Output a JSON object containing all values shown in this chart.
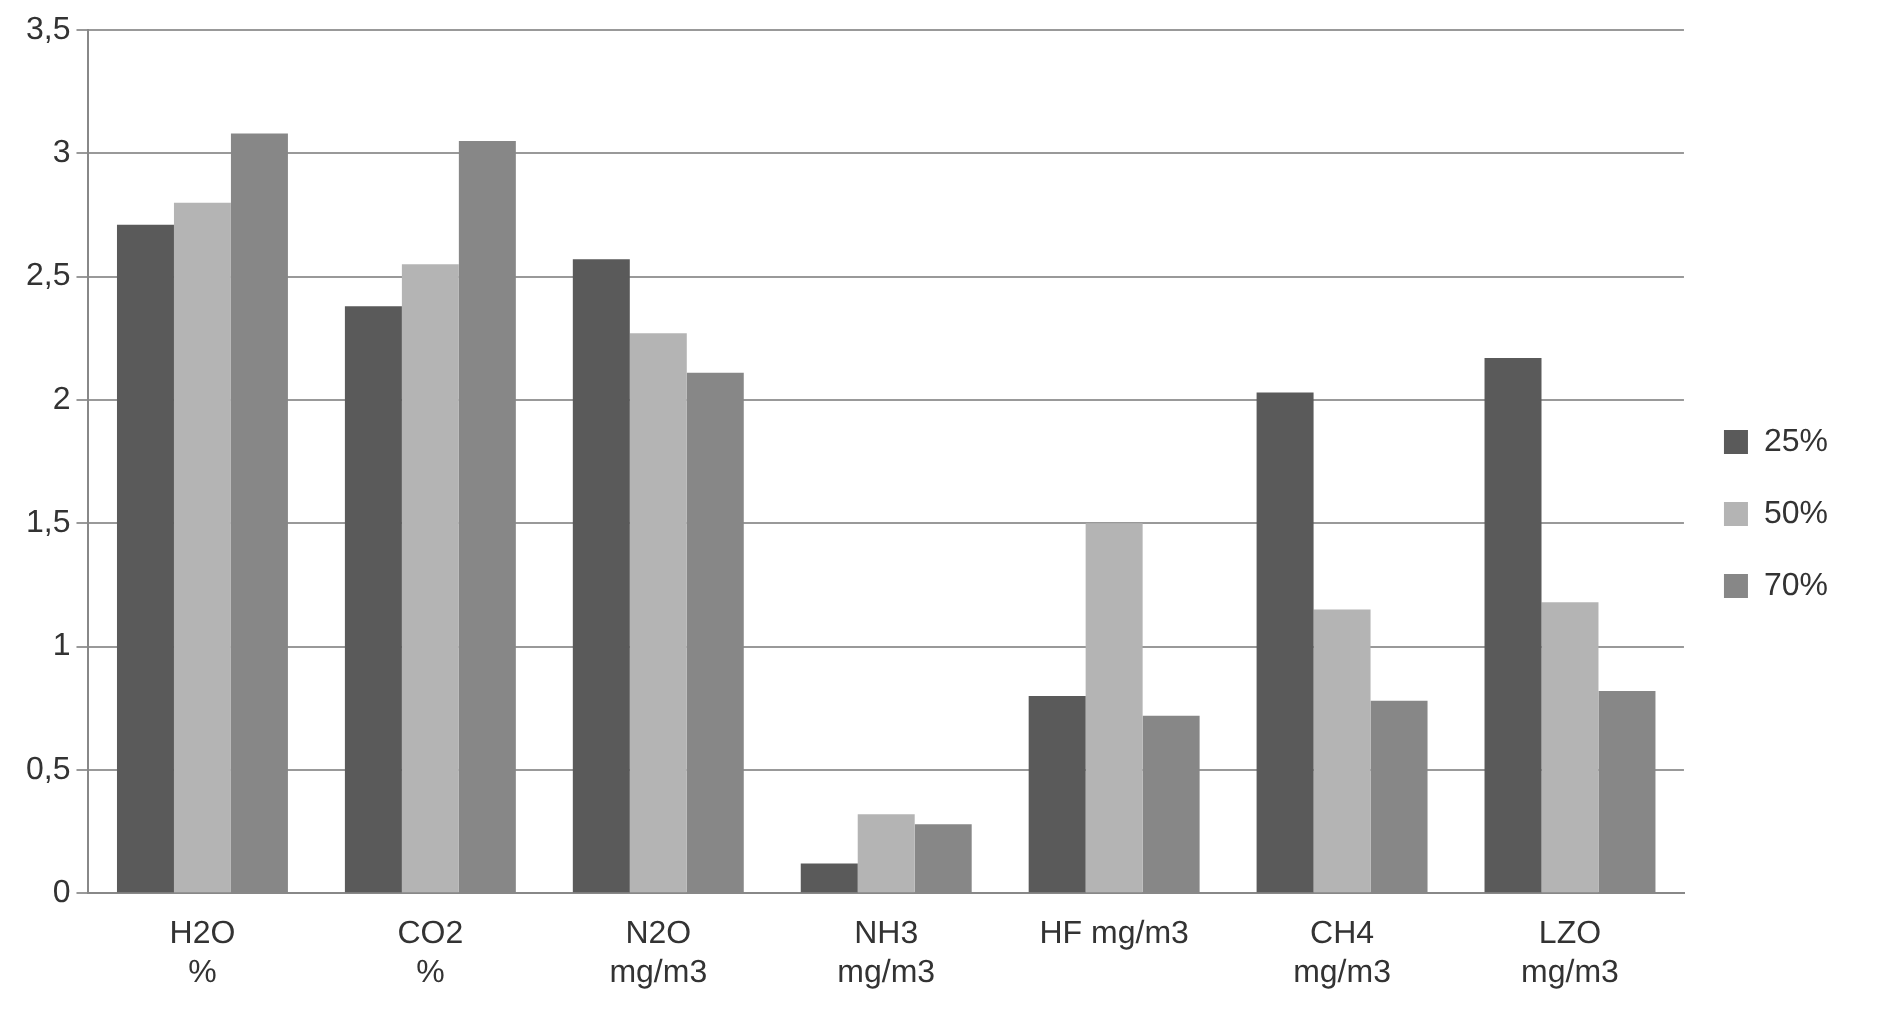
{
  "chart_data": {
    "type": "bar",
    "categories": [
      "H2O\n%",
      "CO2\n%",
      "N2O\nmg/m3",
      "NH3\nmg/m3",
      "HF mg/m3",
      "CH4\nmg/m3",
      "LZO\nmg/m3"
    ],
    "series": [
      {
        "name": "25%",
        "color": "#5a5a5a",
        "values": [
          2.71,
          2.38,
          2.57,
          0.12,
          0.8,
          2.03,
          2.17
        ]
      },
      {
        "name": "50%",
        "color": "#b4b4b4",
        "values": [
          2.8,
          2.55,
          2.27,
          0.32,
          1.5,
          1.15,
          1.18
        ]
      },
      {
        "name": "70%",
        "color": "#878787",
        "values": [
          3.08,
          3.05,
          2.11,
          0.28,
          0.72,
          0.78,
          0.82
        ]
      }
    ],
    "ylim": [
      0,
      3.5
    ],
    "yticks": [
      0,
      {
        "value": 0.5,
        "label": "0,5"
      },
      1,
      {
        "value": 1.5,
        "label": "1,5"
      },
      2,
      {
        "value": 2.5,
        "label": "2,5"
      },
      3,
      {
        "value": 3.5,
        "label": "3,5"
      }
    ],
    "grid": "y",
    "legend": "right"
  }
}
